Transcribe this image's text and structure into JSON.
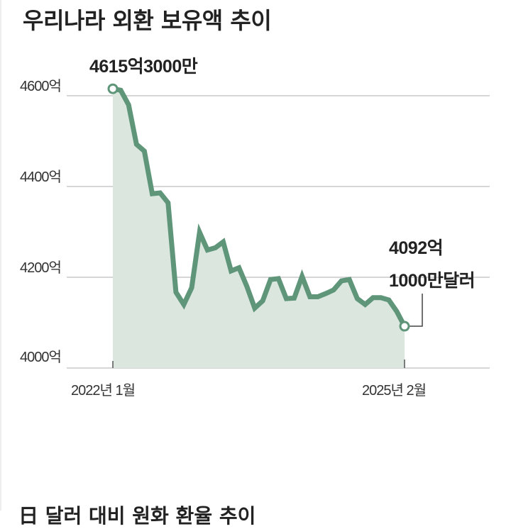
{
  "title": "우리나라 외환 보유액 추이",
  "next_section_title": "日 달러 대비 원화 환율 추이",
  "colors": {
    "line": "#5f967a",
    "fill": "#dbe6df",
    "grid": "#c8c8c8",
    "text": "#222222"
  },
  "annotations": {
    "start": "4615억3000만",
    "end_line1": "4092억",
    "end_line2": "1000만달러"
  },
  "chart_data": {
    "type": "area",
    "title": "우리나라 외환 보유액 추이",
    "xlabel": "",
    "ylabel": "",
    "unit": "억 달러",
    "ylim": [
      4000,
      4630
    ],
    "y_ticks": [
      "4000억",
      "4200억",
      "4400억",
      "4600억"
    ],
    "x_tick_labels": [
      "2022년 1월",
      "2025년 2월"
    ],
    "grid": true,
    "legend": "none",
    "x": [
      "2022-01",
      "2022-02",
      "2022-03",
      "2022-04",
      "2022-05",
      "2022-06",
      "2022-07",
      "2022-08",
      "2022-09",
      "2022-10",
      "2022-11",
      "2022-12",
      "2023-01",
      "2023-02",
      "2023-03",
      "2023-04",
      "2023-05",
      "2023-06",
      "2023-07",
      "2023-08",
      "2023-09",
      "2023-10",
      "2023-11",
      "2023-12",
      "2024-01",
      "2024-02",
      "2024-03",
      "2024-04",
      "2024-05",
      "2024-06",
      "2024-07",
      "2024-08",
      "2024-09",
      "2024-10",
      "2024-11",
      "2024-12",
      "2025-01",
      "2025-02"
    ],
    "values": [
      4615.3,
      4612,
      4580,
      4493,
      4478,
      4384,
      4386,
      4364,
      4167,
      4140,
      4177,
      4299,
      4260,
      4265,
      4278,
      4214,
      4221,
      4180,
      4132,
      4148,
      4195,
      4197,
      4153,
      4154,
      4202,
      4157,
      4157,
      4164,
      4172,
      4192,
      4195,
      4153,
      4140,
      4155,
      4155,
      4150,
      4125,
      4092.1
    ]
  }
}
